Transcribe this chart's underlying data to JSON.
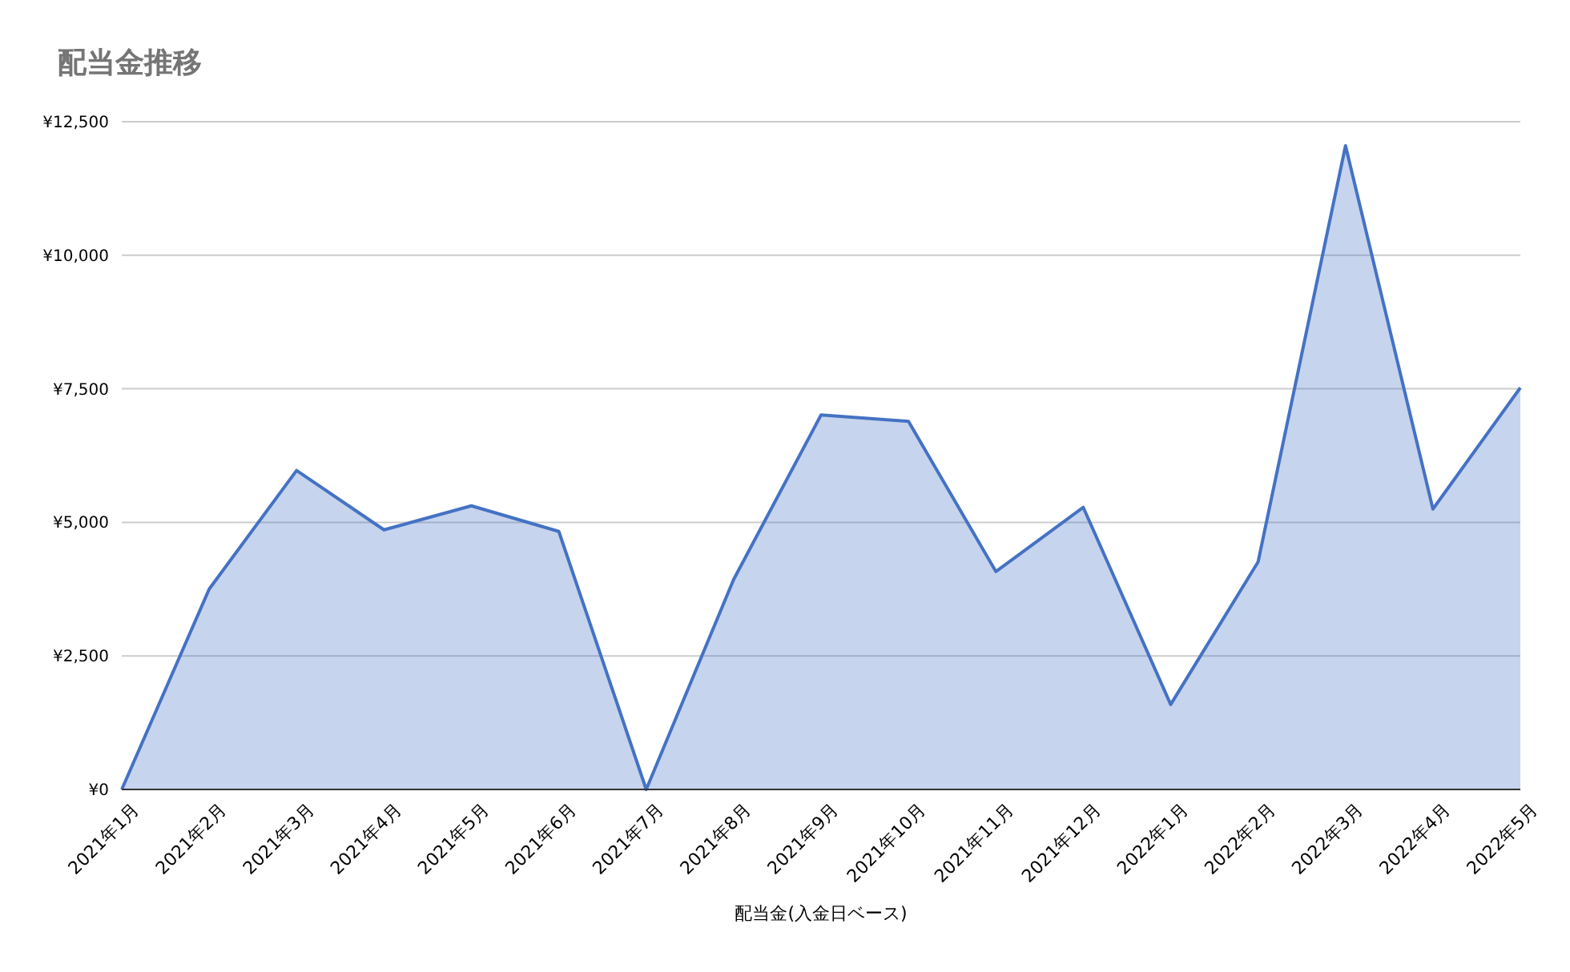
{
  "chart_data": {
    "type": "area",
    "title": "配当金推移",
    "xlabel": "配当金(入金日ベース)",
    "categories": [
      "2021年1月",
      "2021年2月",
      "2021年3月",
      "2021年4月",
      "2021年5月",
      "2021年6月",
      "2021年7月",
      "2021年8月",
      "2021年9月",
      "2021年10月",
      "2021年11月",
      "2021年12月",
      "2022年1月",
      "2022年2月",
      "2022年3月",
      "2022年4月",
      "2022年5月"
    ],
    "series": [
      {
        "color": "#4472c4",
        "values": [
          0,
          3750,
          5970,
          4860,
          5310,
          4830,
          0,
          3930,
          7010,
          6890,
          4080,
          5280,
          1590,
          4260,
          12050,
          5250,
          7520
        ]
      }
    ],
    "ylim": [
      0,
      12500
    ],
    "yticks": [
      {
        "value": 0,
        "label": "¥0"
      },
      {
        "value": 2500,
        "label": "¥2,500"
      },
      {
        "value": 5000,
        "label": "¥5,000"
      },
      {
        "value": 7500,
        "label": "¥7,500"
      },
      {
        "value": 10000,
        "label": "¥10,000"
      },
      {
        "value": 12500,
        "label": "¥12,500"
      }
    ],
    "grid": "y"
  }
}
